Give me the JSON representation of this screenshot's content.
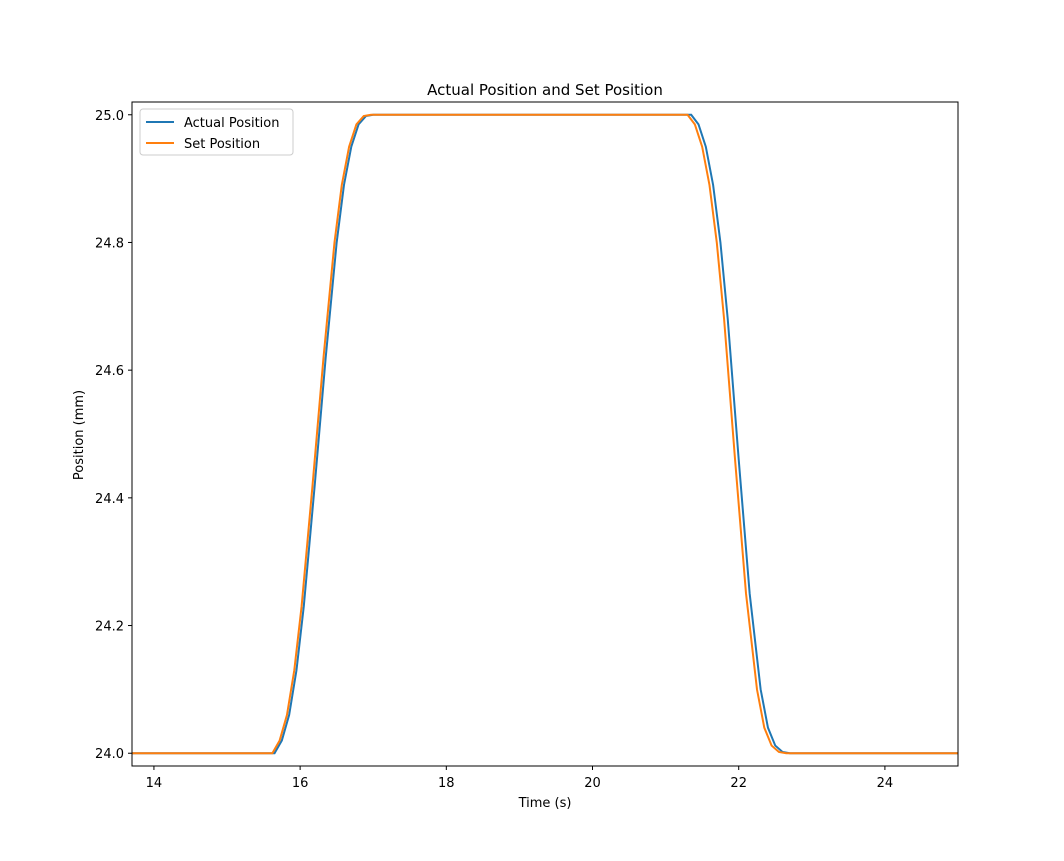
{
  "chart_data": {
    "type": "line",
    "title": "Actual Position and Set Position",
    "xlabel": "Time (s)",
    "ylabel": "Position (mm)",
    "xlim": [
      13.7,
      25.0
    ],
    "ylim": [
      23.98,
      25.02
    ],
    "xticks": [
      14,
      16,
      18,
      20,
      22,
      24
    ],
    "yticks": [
      24.0,
      24.2,
      24.4,
      24.6,
      24.8,
      25.0
    ],
    "grid": false,
    "legend_position": "top-left",
    "series": [
      {
        "name": "Actual Position",
        "color": "#1f77b4",
        "x": [
          13.7,
          15.65,
          15.75,
          15.85,
          15.95,
          16.05,
          16.2,
          16.35,
          16.5,
          16.6,
          16.7,
          16.8,
          16.9,
          17.0,
          17.1,
          21.35,
          21.45,
          21.55,
          21.65,
          21.75,
          21.85,
          22.0,
          22.15,
          22.3,
          22.4,
          22.5,
          22.6,
          22.7,
          22.78,
          25.0
        ],
        "y": [
          24.0,
          24.0,
          24.02,
          24.06,
          24.13,
          24.23,
          24.42,
          24.62,
          24.8,
          24.89,
          24.95,
          24.985,
          24.998,
          25.0,
          25.0,
          25.0,
          24.985,
          24.95,
          24.89,
          24.8,
          24.68,
          24.46,
          24.25,
          24.1,
          24.04,
          24.012,
          24.002,
          24.0,
          24.0,
          24.0
        ]
      },
      {
        "name": "Set Position",
        "color": "#ff7f0e",
        "x": [
          13.7,
          15.62,
          15.72,
          15.82,
          15.92,
          16.02,
          16.17,
          16.32,
          16.47,
          16.57,
          16.67,
          16.77,
          16.87,
          16.97,
          17.07,
          21.3,
          21.4,
          21.5,
          21.6,
          21.7,
          21.8,
          21.95,
          22.1,
          22.25,
          22.35,
          22.45,
          22.55,
          22.65,
          22.73,
          25.0
        ],
        "y": [
          24.0,
          24.0,
          24.02,
          24.06,
          24.13,
          24.23,
          24.42,
          24.62,
          24.8,
          24.89,
          24.95,
          24.985,
          24.998,
          25.0,
          25.0,
          25.0,
          24.985,
          24.95,
          24.89,
          24.8,
          24.68,
          24.46,
          24.25,
          24.1,
          24.04,
          24.012,
          24.002,
          24.0,
          24.0,
          24.0
        ]
      }
    ]
  }
}
